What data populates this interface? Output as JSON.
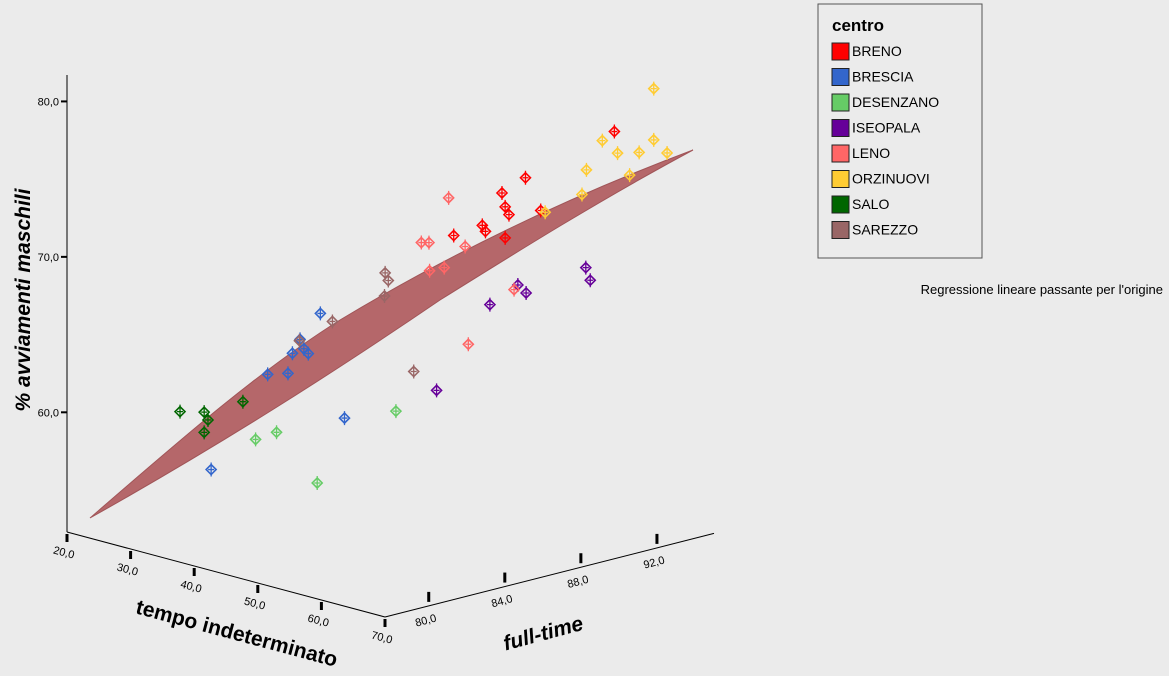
{
  "chart_data": {
    "type": "scatter3d",
    "xlabel": "tempo indeterminato",
    "ylabel": "full-time",
    "zlabel": "% avviamenti maschili",
    "annotation": "Regressione lineare passante per l'origine",
    "legend_title": "centro",
    "xlim": [
      20,
      70
    ],
    "ylim": [
      77.7,
      95
    ],
    "zlim": [
      52.3,
      81.7
    ],
    "xticks": [
      {
        "value": 20,
        "label": "20,0"
      },
      {
        "value": 30,
        "label": "30,0"
      },
      {
        "value": 40,
        "label": "40,0"
      },
      {
        "value": 50,
        "label": "50,0"
      },
      {
        "value": 60,
        "label": "60,0"
      },
      {
        "value": 70,
        "label": "70,0"
      }
    ],
    "yticks": [
      {
        "value": 80,
        "label": "80,0"
      },
      {
        "value": 84,
        "label": "84,0"
      },
      {
        "value": 88,
        "label": "88,0"
      },
      {
        "value": 92,
        "label": "92,0"
      }
    ],
    "zticks": [
      {
        "value": 60,
        "label": "60,0"
      },
      {
        "value": 70,
        "label": "70,0"
      },
      {
        "value": 80,
        "label": "80,0"
      }
    ],
    "series": [
      {
        "name": "BRENO",
        "color": "#ff0000",
        "x": [
          56.1,
          58.0,
          56.3,
          56.6,
          54.5,
          54.7,
          52.1,
          56.3,
          59.2,
          65.4
        ],
        "y": [
          88.5,
          89.1,
          88.6,
          88.7,
          88.0,
          88.1,
          87.3,
          88.6,
          89.5,
          91.3
        ],
        "z": [
          74.7,
          75.7,
          73.8,
          73.3,
          72.6,
          72.2,
          71.9,
          71.8,
          73.6,
          78.8
        ]
      },
      {
        "name": "BRESCIA",
        "color": "#3366cc",
        "x": [
          41.0,
          39.3,
          38.7,
          39.6,
          40.0,
          36.6,
          38.3,
          43.0,
          31.9
        ],
        "y": [
          84.0,
          83.5,
          83.3,
          83.6,
          83.7,
          82.7,
          83.2,
          84.6,
          81.3
        ],
        "z": [
          66.7,
          65.0,
          64.1,
          64.4,
          64.1,
          62.7,
          62.8,
          60.0,
          56.5
        ]
      },
      {
        "name": "DESENZANO",
        "color": "#66cc66",
        "x": [
          40.8,
          47.2,
          37.4,
          35.6
        ],
        "y": [
          83.9,
          85.9,
          82.9,
          82.4
        ],
        "z": [
          55.8,
          60.5,
          59.0,
          58.5
        ]
      },
      {
        "name": "ISEOPALA",
        "color": "#660099",
        "x": [
          63.0,
          63.4,
          57.4,
          58.1,
          55.1,
          50.6
        ],
        "y": [
          90.6,
          90.7,
          88.9,
          89.1,
          88.2,
          86.9
        ],
        "z": [
          70.0,
          69.2,
          68.8,
          68.3,
          67.5,
          61.9
        ]
      },
      {
        "name": "LENO",
        "color": "#ff6666",
        "x": [
          51.6,
          49.4,
          50.0,
          53.0,
          50.1,
          51.2,
          53.2,
          57.1
        ],
        "y": [
          87.2,
          86.5,
          86.7,
          87.6,
          86.7,
          87.1,
          87.7,
          88.8
        ],
        "z": [
          74.3,
          71.4,
          71.4,
          71.2,
          69.6,
          69.8,
          64.9,
          68.5
        ]
      },
      {
        "name": "ORZINUOVI",
        "color": "#ffcc33",
        "x": [
          68.6,
          64.4,
          65.6,
          68.6,
          69.8,
          67.5,
          63.1,
          66.6,
          62.7,
          59.6
        ],
        "y": [
          92.3,
          91.0,
          91.4,
          92.3,
          92.6,
          91.9,
          90.6,
          91.7,
          90.5,
          89.6
        ],
        "z": [
          81.6,
          78.2,
          77.4,
          78.3,
          77.5,
          77.5,
          76.3,
          76.0,
          74.7,
          73.5
        ]
      },
      {
        "name": "SALO",
        "color": "#006600",
        "x": [
          29.4,
          31.4,
          31.7,
          34.5,
          31.4
        ],
        "y": [
          80.5,
          81.1,
          81.2,
          82.1,
          81.1
        ],
        "z": [
          60.2,
          60.2,
          59.7,
          60.9,
          58.9
        ]
      },
      {
        "name": "SAREZZO",
        "color": "#996666",
        "x": [
          46.4,
          46.6,
          46.3,
          42.0,
          39.2,
          48.8
        ],
        "y": [
          85.6,
          85.7,
          85.6,
          84.3,
          83.5,
          86.3
        ],
        "z": [
          69.4,
          68.9,
          67.9,
          66.2,
          64.9,
          63.1
        ]
      }
    ]
  }
}
